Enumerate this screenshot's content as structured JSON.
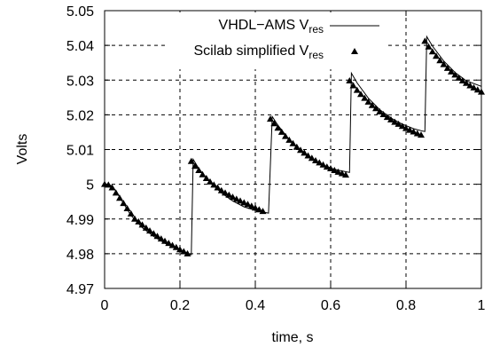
{
  "chart_data": {
    "type": "line",
    "xlabel": "time, s",
    "ylabel": "Volts",
    "xlim": [
      0,
      1
    ],
    "ylim": [
      4.97,
      5.05
    ],
    "x_ticks": [
      "0",
      "0.2",
      "0.4",
      "0.6",
      "0.8",
      "1"
    ],
    "y_ticks": [
      "4.97",
      "4.98",
      "4.99",
      "5",
      "5.01",
      "5.02",
      "5.03",
      "5.04",
      "5.05"
    ],
    "grid": true,
    "legend_position": "top-right",
    "legend": [
      {
        "main": "VHDL−AMS V",
        "sub": "res"
      },
      {
        "main": "Scilab simplified V",
        "sub": "res"
      }
    ],
    "series": [
      {
        "name": "VHDL−AMS V_res",
        "style": "line",
        "x": [
          0,
          0.01,
          0.02,
          0.03,
          0.05,
          0.07,
          0.1,
          0.13,
          0.16,
          0.19,
          0.22,
          0.23,
          0.235,
          0.25,
          0.28,
          0.31,
          0.34,
          0.37,
          0.4,
          0.43,
          0.435,
          0.445,
          0.46,
          0.49,
          0.52,
          0.55,
          0.58,
          0.61,
          0.645,
          0.65,
          0.655,
          0.67,
          0.7,
          0.73,
          0.76,
          0.79,
          0.82,
          0.845,
          0.85,
          0.855,
          0.87,
          0.9,
          0.93,
          0.96,
          1.0
        ],
        "y": [
          5.0,
          5.0,
          4.9995,
          4.998,
          4.9945,
          4.991,
          4.9875,
          4.985,
          4.983,
          4.9815,
          4.9802,
          4.9797,
          5.0072,
          5.0045,
          5.0005,
          4.9975,
          4.9952,
          4.9935,
          4.9925,
          4.9918,
          4.9917,
          5.0195,
          5.017,
          5.0128,
          5.0095,
          5.0072,
          5.0055,
          5.0043,
          5.0035,
          5.0034,
          5.032,
          5.0292,
          5.0248,
          5.0215,
          5.0191,
          5.0173,
          5.016,
          5.0153,
          5.0152,
          5.0425,
          5.0398,
          5.0355,
          5.0322,
          5.0298,
          5.0282
        ]
      },
      {
        "name": "Scilab simplified V_res",
        "style": "triangles",
        "x": [
          0,
          0.01,
          0.02,
          0.03,
          0.04,
          0.05,
          0.06,
          0.07,
          0.08,
          0.09,
          0.1,
          0.11,
          0.12,
          0.13,
          0.14,
          0.15,
          0.16,
          0.17,
          0.18,
          0.19,
          0.2,
          0.21,
          0.22,
          0.23,
          0.24,
          0.25,
          0.26,
          0.27,
          0.28,
          0.29,
          0.3,
          0.31,
          0.32,
          0.33,
          0.34,
          0.35,
          0.36,
          0.37,
          0.38,
          0.39,
          0.4,
          0.41,
          0.42,
          0.44,
          0.45,
          0.46,
          0.47,
          0.48,
          0.49,
          0.5,
          0.51,
          0.52,
          0.53,
          0.54,
          0.55,
          0.56,
          0.57,
          0.58,
          0.59,
          0.6,
          0.61,
          0.62,
          0.63,
          0.64,
          0.65,
          0.66,
          0.67,
          0.68,
          0.69,
          0.7,
          0.71,
          0.72,
          0.73,
          0.74,
          0.75,
          0.76,
          0.77,
          0.78,
          0.79,
          0.8,
          0.81,
          0.82,
          0.83,
          0.84,
          0.85,
          0.86,
          0.87,
          0.88,
          0.89,
          0.9,
          0.91,
          0.92,
          0.93,
          0.94,
          0.95,
          0.96,
          0.97,
          0.98,
          0.99,
          1.0
        ],
        "y": [
          5.0,
          4.9998,
          4.999,
          4.9975,
          4.996,
          4.9945,
          4.993,
          4.9915,
          4.99,
          4.9892,
          4.9883,
          4.9874,
          4.9866,
          4.9858,
          4.985,
          4.9843,
          4.9836,
          4.983,
          4.9824,
          4.9818,
          4.9812,
          4.9806,
          4.98,
          5.0066,
          5.0052,
          5.004,
          5.0028,
          5.0017,
          5.0007,
          4.9998,
          4.999,
          4.9982,
          4.9975,
          4.9969,
          4.9963,
          4.9957,
          4.9952,
          4.9947,
          4.9942,
          4.9937,
          4.9932,
          4.9927,
          4.9922,
          5.0188,
          5.0175,
          5.0162,
          5.015,
          5.0138,
          5.0127,
          5.0117,
          5.0107,
          5.0098,
          5.009,
          5.0082,
          5.0075,
          5.0068,
          5.0062,
          5.0056,
          5.005,
          5.0045,
          5.004,
          5.0035,
          5.0031,
          5.0027,
          5.0298,
          5.0284,
          5.0271,
          5.0259,
          5.0248,
          5.0237,
          5.0227,
          5.0218,
          5.0209,
          5.0201,
          5.0193,
          5.0186,
          5.0179,
          5.0173,
          5.0167,
          5.0161,
          5.0156,
          5.0151,
          5.0146,
          5.0142,
          5.0412,
          5.0396,
          5.0382,
          5.0369,
          5.0356,
          5.0345,
          5.0334,
          5.0324,
          5.0315,
          5.0306,
          5.0298,
          5.0291,
          5.0284,
          5.0278,
          5.0272,
          5.0266
        ]
      }
    ]
  }
}
